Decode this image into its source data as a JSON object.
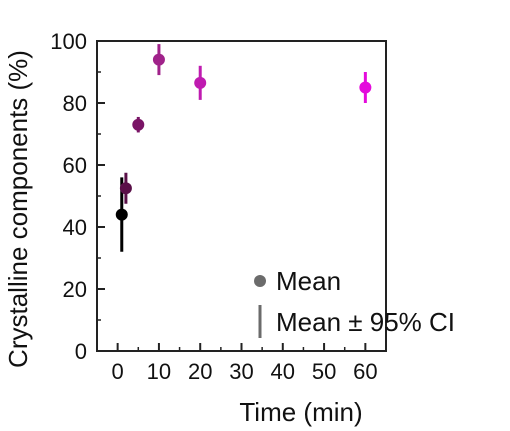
{
  "chart_data": {
    "type": "scatter",
    "xlabel": "Time (min)",
    "ylabel": "Crystalline components (%)",
    "xlim": [
      -5,
      65
    ],
    "ylim": [
      0,
      100
    ],
    "xticks": [
      0,
      10,
      20,
      30,
      40,
      50,
      60
    ],
    "yticks": [
      0,
      20,
      40,
      60,
      80,
      100
    ],
    "grid": false,
    "legend_position": "bottom-right",
    "legend": [
      {
        "marker": "dot",
        "label": "Mean"
      },
      {
        "marker": "bar",
        "label": "Mean ± 95% CI"
      }
    ],
    "points": [
      {
        "x": 1,
        "y": 44,
        "lo": 32,
        "hi": 56,
        "color": "#000000"
      },
      {
        "x": 2,
        "y": 52.5,
        "lo": 47.5,
        "hi": 57.5,
        "color": "#5a1048"
      },
      {
        "x": 5,
        "y": 73,
        "lo": 70.5,
        "hi": 75.5,
        "color": "#7a1466"
      },
      {
        "x": 10,
        "y": 94,
        "lo": 89,
        "hi": 99,
        "color": "#a0228a"
      },
      {
        "x": 20,
        "y": 86.5,
        "lo": 81,
        "hi": 92,
        "color": "#bf1bb0"
      },
      {
        "x": 60,
        "y": 85,
        "lo": 80,
        "hi": 90,
        "color": "#e40bdc"
      }
    ]
  }
}
